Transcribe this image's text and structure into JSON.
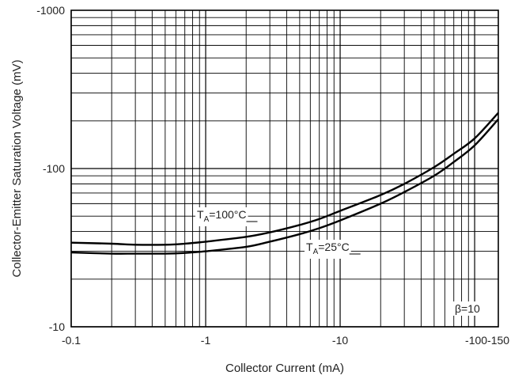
{
  "chart_data": {
    "type": "line",
    "xlabel": "Collector Current (mA)",
    "ylabel": "Collector-Emitter Saturation Voltage (mV)",
    "x_scale": "log",
    "y_scale": "log",
    "xlim": [
      -0.1,
      -150
    ],
    "ylim": [
      -10,
      -1000
    ],
    "x_ticks": [
      {
        "value": -0.1,
        "label": "-0.1"
      },
      {
        "value": -1,
        "label": "-1"
      },
      {
        "value": -10,
        "label": "-10"
      },
      {
        "value": -100,
        "label": "-100-150"
      }
    ],
    "y_ticks": [
      {
        "value": -1000,
        "label": "-1000"
      },
      {
        "value": -100,
        "label": "-100"
      },
      {
        "value": -10,
        "label": "-10"
      }
    ],
    "grid": true,
    "series": [
      {
        "name": "TA=100°C",
        "label_main": "T",
        "label_sub": "A",
        "label_rest": "=100°C",
        "x": [
          -0.1,
          -0.2,
          -0.3,
          -0.5,
          -0.7,
          -1,
          -2,
          -3,
          -5,
          -7,
          -10,
          -20,
          -30,
          -50,
          -70,
          -100,
          -150
        ],
        "y": [
          -34,
          -33.5,
          -33,
          -33,
          -33.5,
          -34.5,
          -37,
          -39.5,
          -44,
          -48,
          -54,
          -68,
          -80,
          -102,
          -124,
          -155,
          -225
        ]
      },
      {
        "name": "TA=25°C",
        "label_main": "T",
        "label_sub": "A",
        "label_rest": "=25°C",
        "x": [
          -0.1,
          -0.2,
          -0.3,
          -0.5,
          -0.7,
          -1,
          -2,
          -3,
          -5,
          -7,
          -10,
          -20,
          -30,
          -50,
          -70,
          -100,
          -150
        ],
        "y": [
          -29.5,
          -29,
          -29,
          -29,
          -29.3,
          -30,
          -32,
          -34.5,
          -38.5,
          -42,
          -47,
          -60,
          -71,
          -90,
          -110,
          -140,
          -205
        ]
      }
    ],
    "annotations": [
      {
        "text": "β=10"
      }
    ]
  }
}
